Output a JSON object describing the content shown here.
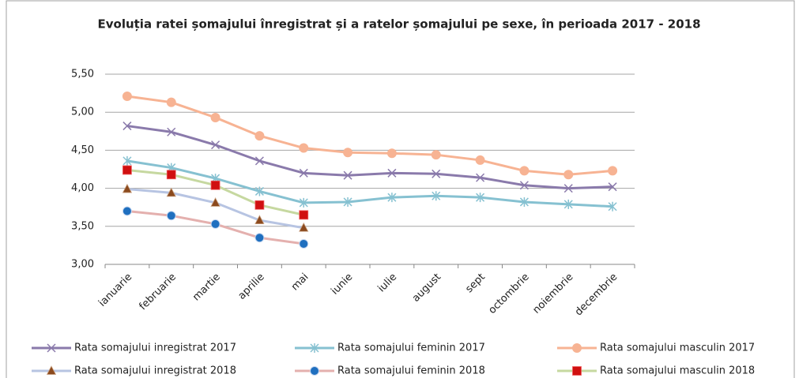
{
  "chart_data": {
    "type": "line",
    "title": "Evoluția ratei șomajului înregistrat și a ratelor șomajului pe sexe, în perioada 2017 - 2018",
    "categories": [
      "ianuarie",
      "februarie",
      "martie",
      "aprilie",
      "mai",
      "iunie",
      "iulie",
      "august",
      "sept",
      "octombrie",
      "noiembrie",
      "decembrie"
    ],
    "ylim": [
      3.0,
      5.5
    ],
    "yticks": [
      {
        "value": 3.0,
        "label": "3,00"
      },
      {
        "value": 3.5,
        "label": "3,50"
      },
      {
        "value": 4.0,
        "label": "4,00"
      },
      {
        "value": 4.5,
        "label": "4,50"
      },
      {
        "value": 5.0,
        "label": "5,00"
      },
      {
        "value": 5.5,
        "label": "5,50"
      }
    ],
    "grid": true,
    "legend": "bottom",
    "series": [
      {
        "name": "Rata somajului inregistrat 2017",
        "color": "#8a7aab",
        "marker": "x",
        "marker_color": "#8a7aab",
        "values": [
          4.82,
          4.74,
          4.57,
          4.36,
          4.2,
          4.17,
          4.2,
          4.19,
          4.14,
          4.04,
          4.0,
          4.02
        ]
      },
      {
        "name": "Rata somajului feminin 2017",
        "color": "#86c1d1",
        "marker": "star",
        "marker_color": "#86c1d1",
        "values": [
          4.36,
          4.27,
          4.13,
          3.96,
          3.81,
          3.82,
          3.88,
          3.9,
          3.88,
          3.82,
          3.79,
          3.76
        ]
      },
      {
        "name": "Rata somajului masculin 2017",
        "color": "#f7b393",
        "marker": "circle",
        "marker_color": "#f7b393",
        "values": [
          5.21,
          5.13,
          4.93,
          4.69,
          4.53,
          4.47,
          4.46,
          4.44,
          4.37,
          4.23,
          4.18,
          4.23
        ]
      },
      {
        "name": "Rata somajului inregistrat 2018",
        "color": "#b7c4e2",
        "marker": "triangle",
        "marker_color": "#8b4a1e",
        "values": [
          3.99,
          3.94,
          3.81,
          3.58,
          3.48,
          null,
          null,
          null,
          null,
          null,
          null,
          null
        ]
      },
      {
        "name": "Rata somajului feminin 2018",
        "color": "#e4b0ae",
        "marker": "circle",
        "marker_color": "#1f6fbf",
        "values": [
          3.7,
          3.64,
          3.53,
          3.35,
          3.27,
          null,
          null,
          null,
          null,
          null,
          null,
          null
        ]
      },
      {
        "name": "Rata somajului masculin 2018",
        "color": "#c6d8a0",
        "marker": "square",
        "marker_color": "#d01010",
        "values": [
          4.24,
          4.18,
          4.04,
          3.78,
          3.65,
          null,
          null,
          null,
          null,
          null,
          null,
          null
        ]
      }
    ]
  }
}
